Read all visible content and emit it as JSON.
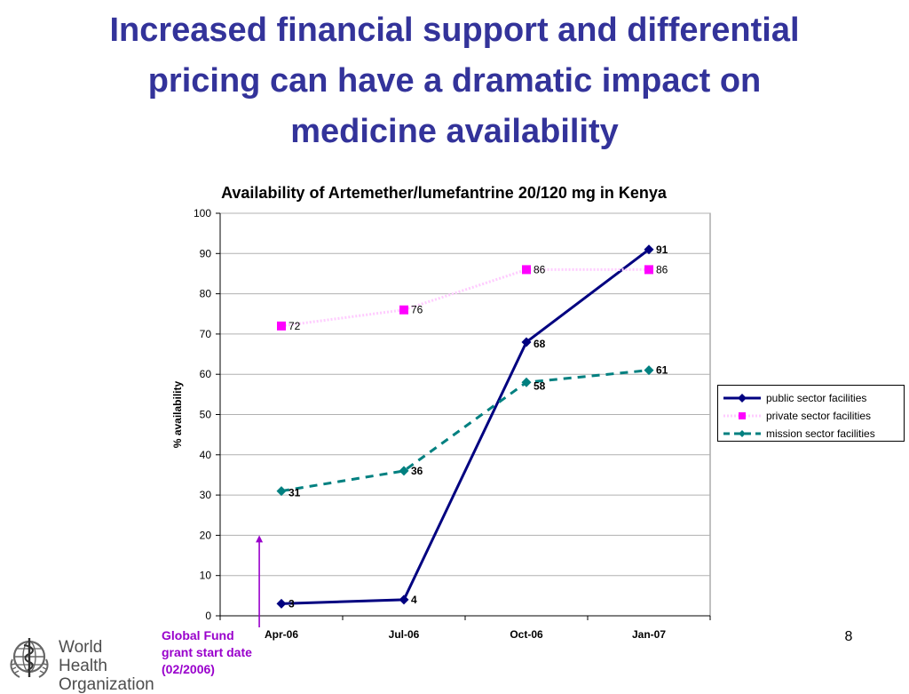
{
  "slide": {
    "title_lines": [
      "Increased financial support and differential",
      "pricing can have a dramatic impact on",
      "medicine availability"
    ],
    "page_number": "8",
    "annotation_lines": [
      "Global Fund",
      "grant start date",
      "(02/2006)"
    ],
    "logo": {
      "line1": "World Health",
      "line2": "Organization"
    },
    "colors": {
      "title": "#33339a",
      "annotation": "#9900cc"
    }
  },
  "chart_data": {
    "type": "line",
    "title": "Availability of Artemether/lumefantrine 20/120 mg in Kenya",
    "xlabel": "",
    "ylabel": "% availability",
    "categories": [
      "Apr-06",
      "Jul-06",
      "Oct-06",
      "Jan-07"
    ],
    "ylim": [
      0,
      100
    ],
    "yticks": [
      0,
      10,
      20,
      30,
      40,
      50,
      60,
      70,
      80,
      90,
      100
    ],
    "grid": true,
    "legend_position": "right",
    "series": [
      {
        "name": "public sector facilities",
        "values": [
          3,
          4,
          68,
          91
        ],
        "color": "#000080",
        "marker": "diamond",
        "line_style": "solid"
      },
      {
        "name": "private sector facilities",
        "values": [
          72,
          76,
          86,
          86
        ],
        "color": "#ff00ff",
        "line_color": "#ffccff",
        "marker": "square",
        "line_style": "dotted"
      },
      {
        "name": "mission sector facilities",
        "values": [
          31,
          36,
          58,
          61
        ],
        "color": "#008080",
        "marker": "diamond",
        "line_style": "dashed"
      }
    ],
    "annotation": {
      "category_position": -0.34,
      "arrow_to_value": 20
    }
  }
}
